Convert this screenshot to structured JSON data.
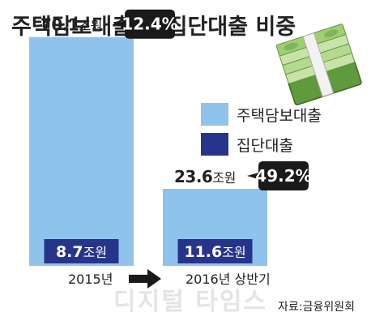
{
  "colors": {
    "background": "#ffffff",
    "housing_loan": "#8fc3ec",
    "group_loan": "#27348b",
    "callout_bg": "#1a1a1a",
    "text": "#222222",
    "watermark": "#e4e4e4"
  },
  "watermark": "디지털 타임스",
  "source": "자료:금융위원회",
  "chart_data": {
    "type": "bar",
    "title": "주택담보대출 중 집단대출 비중",
    "xlabel": "",
    "ylabel": "",
    "ylim": [
      0,
      75
    ],
    "grid": false,
    "legend_placement": "right",
    "categories": [
      "2015년",
      "2016년 상반기"
    ],
    "unit": "조원",
    "series": [
      {
        "name": "주택담보대출",
        "values": [
          70.1,
          23.6
        ],
        "labels": [
          "70.1",
          "23.6"
        ]
      },
      {
        "name": "집단대출",
        "values": [
          8.7,
          11.6
        ],
        "labels": [
          "8.7",
          "11.6"
        ]
      }
    ],
    "shares": [
      "12.4%",
      "49.2%"
    ],
    "arrow_between_categories": true,
    "decoration_icon": "money-stack-icon"
  }
}
